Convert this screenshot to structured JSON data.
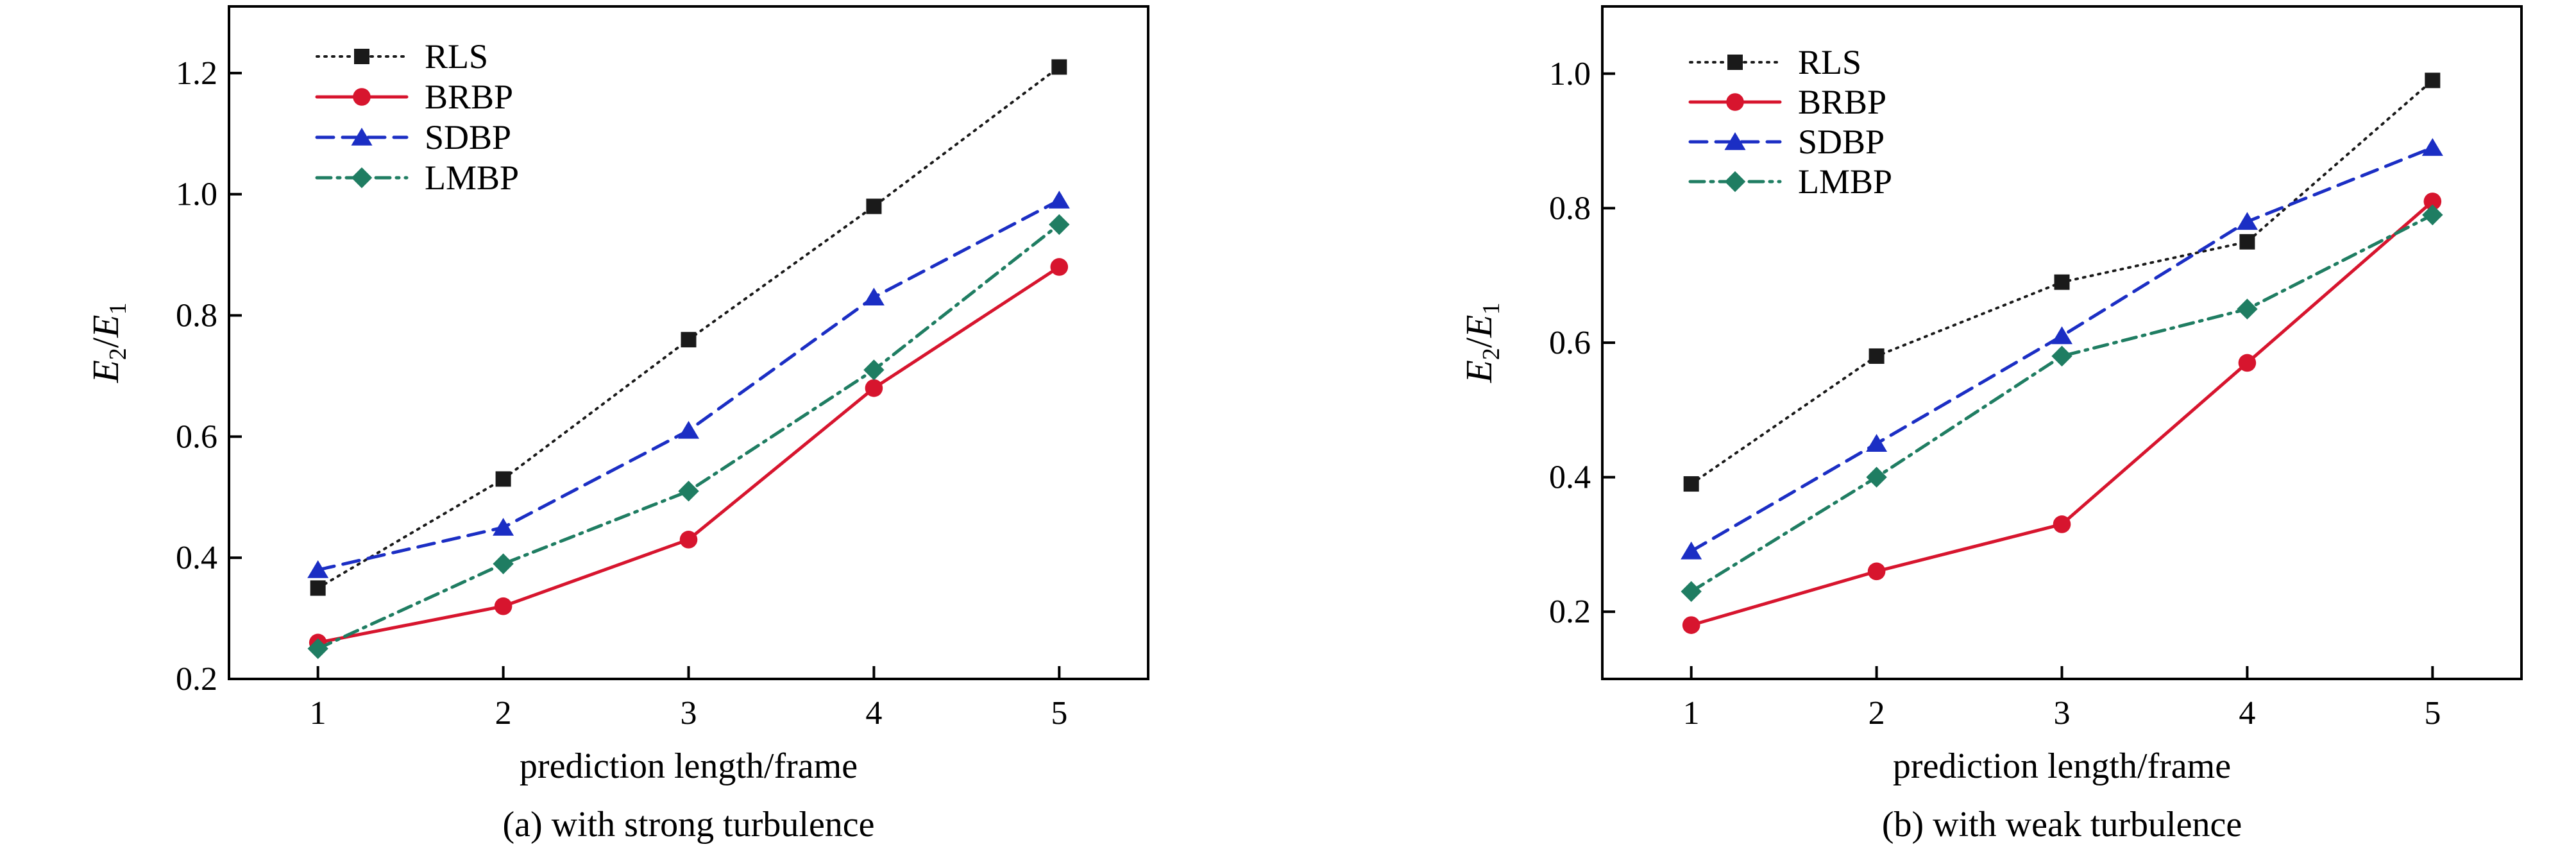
{
  "chart_data": [
    {
      "type": "line",
      "caption": "(a) with strong turbulence",
      "xlabel": "prediction length/frame",
      "ylabel": {
        "e2": "E",
        "e2_sub": "2",
        "slash": "/",
        "e1": "E",
        "e1_sub": "1"
      },
      "x": [
        1,
        2,
        3,
        4,
        5
      ],
      "xlim": [
        0.52,
        5.48
      ],
      "ylim": [
        0.2,
        1.31
      ],
      "yticks": [
        0.2,
        0.4,
        0.6,
        0.8,
        1.0,
        1.2
      ],
      "ytick_labels": [
        "0.2",
        "0.4",
        "0.6",
        "0.8",
        "1.0",
        "1.2"
      ],
      "xtick_labels": [
        "1",
        "2",
        "3",
        "4",
        "5"
      ],
      "grid": false,
      "legend_position": "top-left",
      "series": [
        {
          "name": "RLS",
          "color": "#1a1a1a",
          "marker": "square",
          "linestyle": "dotted",
          "values": [
            0.35,
            0.53,
            0.76,
            0.98,
            1.21
          ]
        },
        {
          "name": "BRBP",
          "color": "#d7152e",
          "marker": "circle",
          "linestyle": "solid",
          "values": [
            0.26,
            0.32,
            0.43,
            0.68,
            0.88
          ]
        },
        {
          "name": "SDBP",
          "color": "#1b2ec4",
          "marker": "triangle",
          "linestyle": "dashed",
          "values": [
            0.38,
            0.45,
            0.61,
            0.83,
            0.99
          ]
        },
        {
          "name": "LMBP",
          "color": "#1f7d62",
          "marker": "diamond",
          "linestyle": "dash-dot",
          "values": [
            0.25,
            0.39,
            0.51,
            0.71,
            0.95
          ]
        }
      ]
    },
    {
      "type": "line",
      "caption": "(b) with weak turbulence",
      "xlabel": "prediction length/frame",
      "ylabel": {
        "e2": "E",
        "e2_sub": "2",
        "slash": "/",
        "e1": "E",
        "e1_sub": "1"
      },
      "x": [
        1,
        2,
        3,
        4,
        5
      ],
      "xlim": [
        0.52,
        5.48
      ],
      "ylim": [
        0.1,
        1.1
      ],
      "yticks": [
        0.2,
        0.4,
        0.6,
        0.8,
        1.0
      ],
      "ytick_labels": [
        "0.2",
        "0.4",
        "0.6",
        "0.8",
        "1.0"
      ],
      "xtick_labels": [
        "1",
        "2",
        "3",
        "4",
        "5"
      ],
      "grid": false,
      "legend_position": "top-left",
      "series": [
        {
          "name": "RLS",
          "color": "#1a1a1a",
          "marker": "square",
          "linestyle": "dotted",
          "values": [
            0.39,
            0.58,
            0.69,
            0.75,
            0.99
          ]
        },
        {
          "name": "BRBP",
          "color": "#d7152e",
          "marker": "circle",
          "linestyle": "solid",
          "values": [
            0.18,
            0.26,
            0.33,
            0.57,
            0.81
          ]
        },
        {
          "name": "SDBP",
          "color": "#1b2ec4",
          "marker": "triangle",
          "linestyle": "dashed",
          "values": [
            0.29,
            0.45,
            0.61,
            0.78,
            0.89
          ]
        },
        {
          "name": "LMBP",
          "color": "#1f7d62",
          "marker": "diamond",
          "linestyle": "dash-dot",
          "values": [
            0.23,
            0.4,
            0.58,
            0.65,
            0.79
          ]
        }
      ]
    }
  ]
}
